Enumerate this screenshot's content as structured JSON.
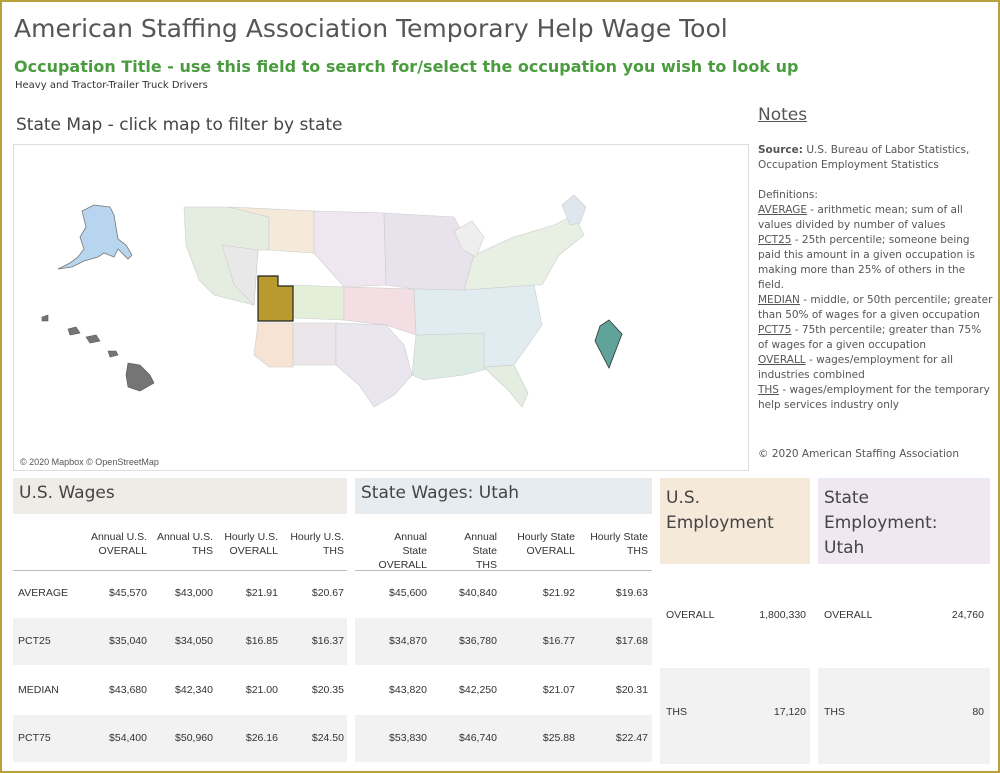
{
  "header": {
    "title": "American Staffing Association Temporary Help Wage Tool",
    "occupation_label": "Occupation Title - use this field to search for/select the occupation you wish to look up",
    "occupation_value": "Heavy and Tractor-Trailer Truck Drivers"
  },
  "map": {
    "title": "State Map - click map to filter by state",
    "credit": "© 2020 Mapbox © OpenStreetMap",
    "selected_state": "Utah",
    "selected_color": "#b89a2e",
    "dc_color": "#5fa39b",
    "alaska_color": "#b7d5ef",
    "hawaii_color": "#757575"
  },
  "notes": {
    "heading": "Notes",
    "source_label": "Source:",
    "source_text": "U.S. Bureau of Labor Statistics, Occupation Employment Statistics",
    "definitions_label": "Definitions:",
    "definitions": [
      {
        "term": "AVERAGE",
        "text": " - arithmetic mean; sum of all values divided by number of values"
      },
      {
        "term": "PCT25",
        "text": " - 25th percentile; someone being paid this amount in a given occupation is making more than 25% of others in the field."
      },
      {
        "term": "MEDIAN",
        "text": " - middle, or 50th percentile;  greater than 50% of wages for a given occupation"
      },
      {
        "term": "PCT75",
        "text": " - 75th percentile; greater than 75% of wages for a given occupation"
      },
      {
        "term": "OVERALL",
        "text": " - wages/employment for all industries combined"
      },
      {
        "term": "THS",
        "text": " - wages/employment for the temporary help services industry only"
      }
    ],
    "copyright": "© 2020 American Staffing Association"
  },
  "us_wages": {
    "title": "U.S. Wages",
    "columns": [
      [
        "Annual U.S.",
        "OVERALL"
      ],
      [
        "Annual U.S.",
        "THS"
      ],
      [
        "Hourly U.S.",
        "OVERALL"
      ],
      [
        "Hourly U.S.",
        "THS"
      ]
    ],
    "rows": [
      {
        "label": "AVERAGE",
        "values": [
          "$45,570",
          "$43,000",
          "$21.91",
          "$20.67"
        ]
      },
      {
        "label": "PCT25",
        "values": [
          "$35,040",
          "$34,050",
          "$16.85",
          "$16.37"
        ]
      },
      {
        "label": "MEDIAN",
        "values": [
          "$43,680",
          "$42,340",
          "$21.00",
          "$20.35"
        ]
      },
      {
        "label": "PCT75",
        "values": [
          "$54,400",
          "$50,960",
          "$26.16",
          "$24.50"
        ]
      }
    ]
  },
  "state_wages": {
    "title": "State Wages:  Utah",
    "columns": [
      [
        "Annual State",
        "OVERALL"
      ],
      [
        "Annual State",
        "THS"
      ],
      [
        "Hourly State",
        "OVERALL"
      ],
      [
        "Hourly State",
        "THS"
      ]
    ],
    "rows": [
      {
        "values": [
          "$45,600",
          "$40,840",
          "$21.92",
          "$19.63"
        ]
      },
      {
        "values": [
          "$34,870",
          "$36,780",
          "$16.77",
          "$17.68"
        ]
      },
      {
        "values": [
          "$43,820",
          "$42,250",
          "$21.07",
          "$20.31"
        ]
      },
      {
        "values": [
          "$53,830",
          "$46,740",
          "$25.88",
          "$22.47"
        ]
      }
    ]
  },
  "us_employment": {
    "title_line1": "U.S.",
    "title_line2": "Employment",
    "rows": [
      {
        "label": "OVERALL",
        "value": "1,800,330"
      },
      {
        "label": "THS",
        "value": "17,120"
      }
    ]
  },
  "state_employment": {
    "title_line1": "State Employment:",
    "title_line2": "Utah",
    "rows": [
      {
        "label": "OVERALL",
        "value": "24,760"
      },
      {
        "label": "THS",
        "value": "80"
      }
    ]
  },
  "colors": {
    "accent_green": "#4a9c3f",
    "frame_gold": "#b8a03a",
    "us_wage_head": "#efebe7",
    "state_wage_head": "#e6ecf0",
    "us_emp_head": "#f5ead9",
    "state_emp_head": "#efe7f1"
  }
}
